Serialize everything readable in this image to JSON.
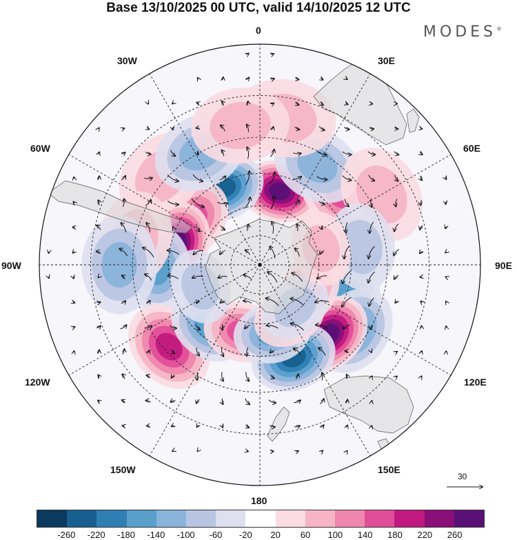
{
  "title": "Base 13/10/2025 00 UTC, valid 14/10/2025 12 UTC",
  "brand": {
    "name": "MODES",
    "mark": "®"
  },
  "longitude_labels": {
    "n0": "0",
    "e30": "30E",
    "e60": "60E",
    "e90": "90E",
    "e120": "120E",
    "e150": "150E",
    "s180": "180",
    "w150": "150W",
    "w120": "120W",
    "w90": "90W",
    "w60": "60W",
    "w30": "30W"
  },
  "vector_scale": {
    "label": "30"
  },
  "colorbar": {
    "colors": [
      "#0b3a5e",
      "#175f8f",
      "#2f7fb4",
      "#5a9fcc",
      "#8ab3da",
      "#b8c5e2",
      "#dfe0ef",
      "#ffffff",
      "#fbdce2",
      "#f6b5c6",
      "#ef86ad",
      "#e04e99",
      "#c0197f",
      "#8a0f78",
      "#5a1177"
    ],
    "ticks": [
      "-260",
      "-220",
      "-180",
      "-140",
      "-100",
      "-60",
      "-20",
      "20",
      "60",
      "100",
      "140",
      "180",
      "220",
      "260"
    ]
  },
  "anomalies": [
    {
      "lon": 15,
      "lat": -52,
      "value": 230
    },
    {
      "lon": -25,
      "lat": -48,
      "value": -200
    },
    {
      "lon": -55,
      "lat": -50,
      "value": 110
    },
    {
      "lon": -48,
      "lat": -28,
      "value": 60
    },
    {
      "lon": -28,
      "lat": -30,
      "value": -70
    },
    {
      "lon": -75,
      "lat": -48,
      "value": 240
    },
    {
      "lon": -92,
      "lat": -40,
      "value": -130
    },
    {
      "lon": -78,
      "lat": -30,
      "value": 60
    },
    {
      "lon": -90,
      "lat": -25,
      "value": -70
    },
    {
      "lon": -132,
      "lat": -32,
      "value": 170
    },
    {
      "lon": -140,
      "lat": -50,
      "value": -120
    },
    {
      "lon": -165,
      "lat": -55,
      "value": 120
    },
    {
      "lon": 95,
      "lat": -55,
      "value": 240
    },
    {
      "lon": 108,
      "lat": -45,
      "value": -140
    },
    {
      "lon": 125,
      "lat": -35,
      "value": -110
    },
    {
      "lon": 135,
      "lat": -42,
      "value": 230
    },
    {
      "lon": 160,
      "lat": -42,
      "value": -220
    },
    {
      "lon": 170,
      "lat": -55,
      "value": -120
    },
    {
      "lon": 150,
      "lat": -60,
      "value": 60
    },
    {
      "lon": 48,
      "lat": -38,
      "value": 140
    },
    {
      "lon": 30,
      "lat": -35,
      "value": -80
    },
    {
      "lon": 60,
      "lat": -25,
      "value": 60
    },
    {
      "lon": 10,
      "lat": -22,
      "value": 60
    },
    {
      "lon": -8,
      "lat": -25,
      "value": 60
    },
    {
      "lon": 80,
      "lat": -40,
      "value": -40
    },
    {
      "lon": 115,
      "lat": -62,
      "value": 70
    },
    {
      "lon": 140,
      "lat": -62,
      "value": -60
    },
    {
      "lon": -110,
      "lat": -58,
      "value": -40
    },
    {
      "lon": 75,
      "lat": -58,
      "value": 50
    }
  ]
}
